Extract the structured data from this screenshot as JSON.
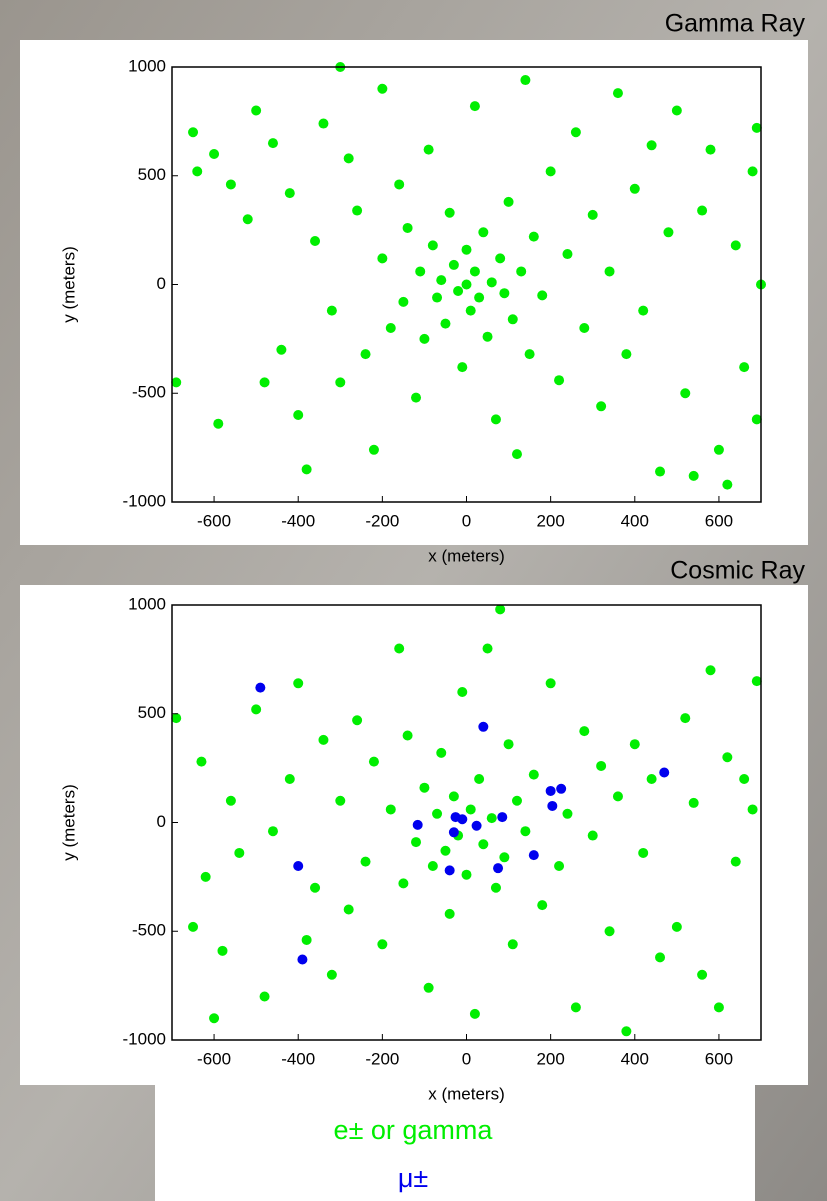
{
  "chart_data": [
    {
      "type": "scatter",
      "title": "Gamma Ray",
      "xlabel": "x (meters)",
      "ylabel": "y (meters)",
      "xlim": [
        -700,
        700
      ],
      "ylim": [
        -1000,
        1000
      ],
      "xticks": [
        -600,
        -400,
        -200,
        0,
        200,
        400,
        600
      ],
      "yticks": [
        -1000,
        -500,
        0,
        500,
        1000
      ],
      "series": [
        {
          "color": "#00ee00",
          "x": [
            -690,
            -650,
            -640,
            -600,
            -590,
            -560,
            -520,
            -500,
            -480,
            -460,
            -440,
            -420,
            -400,
            -380,
            -360,
            -340,
            -320,
            -300,
            -300,
            -280,
            -260,
            -240,
            -220,
            -200,
            -200,
            -180,
            -160,
            -150,
            -140,
            -120,
            -110,
            -100,
            -90,
            -80,
            -70,
            -60,
            -50,
            -40,
            -30,
            -20,
            -10,
            0,
            0,
            10,
            20,
            20,
            30,
            40,
            50,
            60,
            70,
            80,
            90,
            100,
            110,
            120,
            130,
            140,
            150,
            160,
            180,
            200,
            220,
            240,
            260,
            280,
            300,
            320,
            340,
            360,
            380,
            400,
            420,
            440,
            460,
            480,
            500,
            520,
            540,
            560,
            580,
            600,
            620,
            640,
            660,
            680,
            690,
            690,
            700
          ],
          "values": [
            -450,
            700,
            520,
            600,
            -640,
            460,
            300,
            800,
            -450,
            650,
            -300,
            420,
            -600,
            -850,
            200,
            740,
            -120,
            1000,
            -450,
            580,
            340,
            -320,
            -760,
            900,
            120,
            -200,
            460,
            -80,
            260,
            -520,
            60,
            -250,
            620,
            180,
            -60,
            20,
            -180,
            330,
            90,
            -30,
            -380,
            160,
            0,
            -120,
            820,
            60,
            -60,
            240,
            -240,
            10,
            -620,
            120,
            -40,
            380,
            -160,
            -780,
            60,
            940,
            -320,
            220,
            -50,
            520,
            -440,
            140,
            700,
            -200,
            320,
            -560,
            60,
            880,
            -320,
            440,
            -120,
            640,
            -860,
            240,
            800,
            -500,
            -880,
            340,
            620,
            -760,
            -920,
            180,
            -380,
            520,
            -620,
            720,
            0
          ]
        }
      ]
    },
    {
      "type": "scatter",
      "title": "Cosmic Ray",
      "xlabel": "x (meters)",
      "ylabel": "y (meters)",
      "xlim": [
        -700,
        700
      ],
      "ylim": [
        -1000,
        1000
      ],
      "xticks": [
        -600,
        -400,
        -200,
        0,
        200,
        400,
        600
      ],
      "yticks": [
        -1000,
        -500,
        0,
        500,
        1000
      ],
      "series": [
        {
          "name": "e± or gamma",
          "color": "#00ee00",
          "x": [
            -690,
            -650,
            -630,
            -620,
            -600,
            -580,
            -560,
            -540,
            -500,
            -480,
            -460,
            -420,
            -400,
            -380,
            -360,
            -340,
            -320,
            -300,
            -280,
            -260,
            -240,
            -220,
            -200,
            -180,
            -160,
            -150,
            -140,
            -120,
            -100,
            -90,
            -80,
            -70,
            -60,
            -50,
            -40,
            -30,
            -20,
            -10,
            0,
            10,
            20,
            30,
            40,
            50,
            60,
            70,
            80,
            90,
            100,
            110,
            120,
            140,
            160,
            180,
            200,
            220,
            240,
            260,
            280,
            300,
            320,
            340,
            360,
            380,
            400,
            420,
            440,
            460,
            500,
            520,
            540,
            560,
            580,
            600,
            620,
            640,
            660,
            680,
            690
          ],
          "values": [
            480,
            -480,
            280,
            -250,
            -900,
            -590,
            100,
            -140,
            520,
            -800,
            -40,
            200,
            640,
            -540,
            -300,
            380,
            -700,
            100,
            -400,
            470,
            -180,
            280,
            -560,
            60,
            800,
            -280,
            400,
            -90,
            160,
            -760,
            -200,
            40,
            320,
            -130,
            -420,
            120,
            -60,
            600,
            -240,
            60,
            -880,
            200,
            -100,
            800,
            20,
            -300,
            980,
            -160,
            360,
            -560,
            100,
            -40,
            220,
            -380,
            640,
            -200,
            40,
            -850,
            420,
            -60,
            260,
            -500,
            120,
            -960,
            360,
            -140,
            200,
            -620,
            -480,
            480,
            90,
            -700,
            700,
            -850,
            300,
            -180,
            200,
            60,
            650
          ]
        },
        {
          "name": "μ±",
          "color": "#0000ee",
          "x": [
            -490,
            40,
            -400,
            -390,
            470,
            200,
            225,
            204,
            -116,
            -26,
            -10,
            -30,
            24,
            85,
            160,
            -40,
            75
          ],
          "values": [
            620,
            440,
            -200,
            -630,
            230,
            145,
            155,
            76,
            -11,
            25,
            15,
            -45,
            -15,
            25,
            -150,
            -220,
            -210
          ]
        }
      ]
    }
  ]
}
